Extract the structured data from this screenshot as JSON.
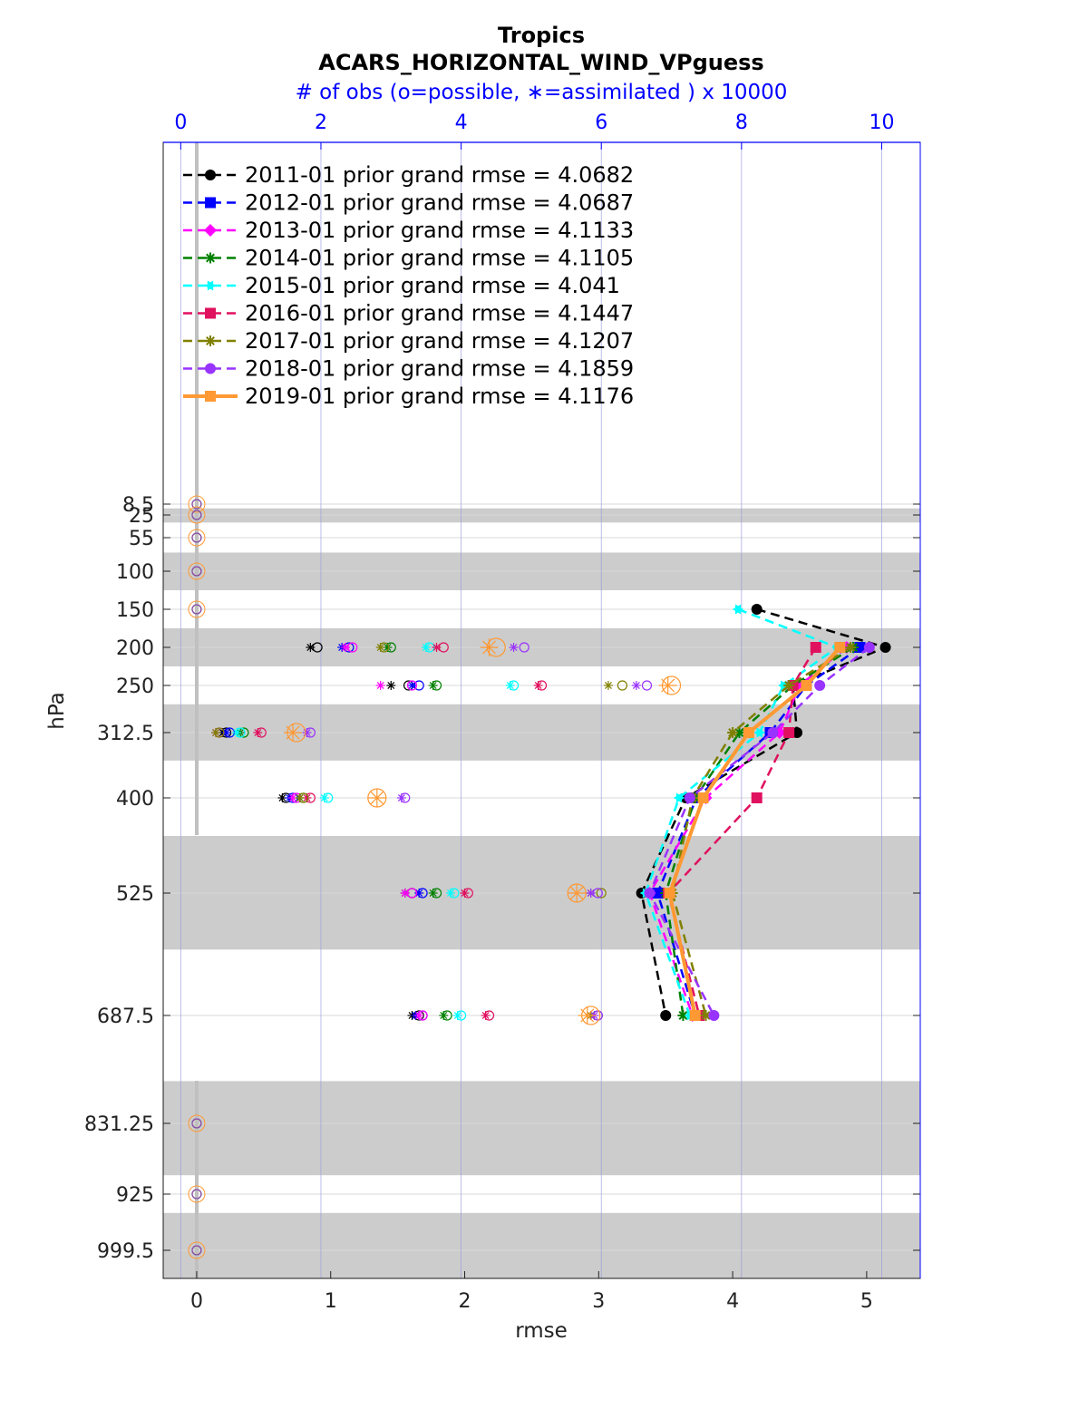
{
  "chart_data": {
    "type": "line",
    "title": "Tropics",
    "subtitle": "ACARS_HORIZONTAL_WIND_VPguess",
    "top_axis_label": "# of obs (o=possible, ∗=assimilated ) x 10000",
    "xlabel": "rmse",
    "ylabel": "hPa",
    "xlim": [
      -0.25,
      5.4
    ],
    "top_xlim": [
      -0.25,
      10.55
    ],
    "x_ticks": [
      0,
      1,
      2,
      3,
      4,
      5
    ],
    "top_x_ticks": [
      0,
      2,
      4,
      6,
      8,
      10
    ],
    "y_ticks": [
      8.5,
      25,
      55,
      100,
      150,
      200,
      250,
      312.5,
      400,
      525,
      687.5,
      831.25,
      925,
      999.5
    ],
    "y_tick_labels": [
      "8.5",
      "25",
      "55",
      "100",
      "150",
      "200",
      "250",
      "312.5",
      "400",
      "525",
      "687.5",
      "831.25",
      "925",
      "999.5"
    ],
    "y_inverted": true,
    "grid": true,
    "legend_position": "top-left",
    "shaded_layers_hPa": [
      [
        15,
        35
      ],
      [
        75,
        125
      ],
      [
        175,
        225
      ],
      [
        275,
        350
      ],
      [
        450,
        600
      ],
      [
        775,
        900
      ],
      [
        950,
        1050
      ]
    ],
    "levels": [
      150,
      200,
      250,
      312.5,
      400,
      525,
      687.5
    ],
    "zero_levels": [
      8.5,
      25,
      55,
      100,
      150,
      831.25,
      925,
      999.5
    ],
    "series": [
      {
        "name": "2011-01",
        "legend": "2011-01 prior grand rmse = 4.0682",
        "color": "#000000",
        "marker": "circle",
        "style": "dashed",
        "rmse": [
          4.18,
          5.14,
          4.45,
          4.48,
          3.65,
          3.32,
          3.5
        ],
        "obs_possible": [
          0,
          1.95,
          3.25,
          0.65,
          1.5,
          3.3,
          3.4
        ],
        "obs_assimilated": [
          0,
          1.85,
          3.0,
          0.6,
          1.45,
          3.2,
          3.3
        ]
      },
      {
        "name": "2012-01",
        "legend": "2012-01 prior grand rmse = 4.0687",
        "color": "#0000ff",
        "marker": "square",
        "style": "dashed",
        "rmse": [
          null,
          4.95,
          4.55,
          4.28,
          3.73,
          3.44,
          3.72
        ],
        "obs_possible": [
          0,
          2.4,
          3.4,
          0.7,
          1.6,
          3.45,
          3.45
        ],
        "obs_assimilated": [
          0,
          2.3,
          3.3,
          0.65,
          1.55,
          3.4,
          3.35
        ]
      },
      {
        "name": "2013-01",
        "legend": "2013-01 prior grand rmse = 4.1133",
        "color": "#ff00ff",
        "marker": "diamond",
        "style": "dashed",
        "rmse": [
          null,
          4.85,
          4.5,
          4.35,
          3.8,
          3.38,
          3.7
        ],
        "obs_possible": [
          0,
          2.45,
          3.3,
          0.55,
          1.65,
          3.3,
          3.45
        ],
        "obs_assimilated": [
          0,
          2.35,
          2.85,
          0.5,
          1.6,
          3.2,
          3.4
        ]
      },
      {
        "name": "2014-01",
        "legend": "2014-01 prior grand rmse = 4.1105",
        "color": "#008000",
        "marker": "star",
        "style": "dashed",
        "rmse": [
          null,
          4.9,
          4.45,
          4.05,
          3.72,
          3.5,
          3.63
        ],
        "obs_possible": [
          0,
          3.0,
          3.65,
          0.9,
          1.75,
          3.65,
          3.8
        ],
        "obs_assimilated": [
          0,
          2.95,
          3.6,
          0.85,
          1.7,
          3.6,
          3.75
        ]
      },
      {
        "name": "2015-01",
        "legend": "2015-01 prior grand rmse = 4.041",
        "color": "#00ffff",
        "marker": "hexagram",
        "style": "dashed",
        "rmse": [
          4.04,
          4.78,
          4.38,
          4.2,
          3.6,
          3.35,
          3.68
        ],
        "obs_possible": [
          0,
          3.55,
          4.75,
          0.85,
          2.1,
          3.9,
          4.0
        ],
        "obs_assimilated": [
          0,
          3.5,
          4.7,
          0.8,
          2.05,
          3.85,
          3.95
        ]
      },
      {
        "name": "2016-01",
        "legend": "2016-01 prior grand rmse = 4.1447",
        "color": "#e0115f",
        "marker": "square",
        "style": "dashed",
        "rmse": [
          null,
          4.62,
          4.45,
          4.42,
          4.18,
          3.52,
          3.75
        ],
        "obs_possible": [
          0,
          3.75,
          5.15,
          1.15,
          1.85,
          4.1,
          4.4
        ],
        "obs_assimilated": [
          0,
          3.65,
          5.1,
          1.1,
          1.8,
          4.05,
          4.35
        ]
      },
      {
        "name": "2017-01",
        "legend": "2017-01 prior grand rmse = 4.1207",
        "color": "#808000",
        "marker": "star",
        "style": "dashed",
        "rmse": [
          null,
          4.88,
          4.42,
          4.0,
          3.7,
          3.55,
          3.8
        ],
        "obs_possible": [
          0,
          2.9,
          6.3,
          0.55,
          1.75,
          6.0,
          5.95
        ],
        "obs_assimilated": [
          0,
          2.85,
          6.1,
          0.5,
          1.7,
          5.85,
          5.85
        ]
      },
      {
        "name": "2018-01",
        "legend": "2018-01 prior grand rmse = 4.1859",
        "color": "#9933ff",
        "marker": "circle",
        "style": "dashed",
        "rmse": [
          null,
          5.02,
          4.65,
          4.3,
          3.68,
          3.38,
          3.86
        ],
        "obs_possible": [
          0,
          4.9,
          6.65,
          1.85,
          3.2,
          5.95,
          5.95
        ],
        "obs_assimilated": [
          0,
          4.75,
          6.5,
          1.8,
          3.15,
          5.85,
          5.9
        ]
      },
      {
        "name": "2019-01",
        "legend": "2019-01 prior grand rmse = 4.1176",
        "color": "#ff9933",
        "marker": "square",
        "style": "solid",
        "rmse": [
          null,
          4.8,
          4.55,
          4.12,
          3.78,
          3.53,
          3.72
        ],
        "obs_possible": [
          0,
          4.5,
          7.0,
          1.65,
          2.8,
          5.65,
          5.85
        ],
        "obs_assimilated": [
          0,
          4.4,
          6.95,
          1.6,
          2.8,
          5.65,
          5.8
        ]
      }
    ]
  }
}
